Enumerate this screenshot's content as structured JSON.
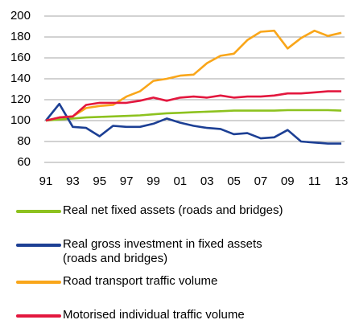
{
  "chart_data": {
    "type": "line",
    "categories": [
      "91",
      null,
      "93",
      null,
      "95",
      null,
      "97",
      null,
      "99",
      null,
      "01",
      null,
      "03",
      null,
      "05",
      null,
      "07",
      null,
      "09",
      null,
      "11",
      null,
      "13"
    ],
    "ylim": [
      60,
      200
    ],
    "yticks": [
      60,
      80,
      100,
      120,
      140,
      160,
      180,
      200
    ],
    "grid": true,
    "series": [
      {
        "name": "Real net fixed assets (roads and bridges)",
        "color": "#8dc21f",
        "values": [
          100,
          101,
          102,
          103,
          103.5,
          104,
          104.5,
          105,
          106,
          107,
          107.5,
          108,
          108.5,
          109,
          109.5,
          109.5,
          109.5,
          109.5,
          110,
          110,
          110,
          110,
          109.5
        ]
      },
      {
        "name": "Real gross investment in fixed assets (roads and bridges)",
        "color": "#1c3f94",
        "values": [
          100,
          116,
          94,
          93,
          85,
          95,
          94,
          94,
          97,
          102,
          98,
          95,
          93,
          92,
          87,
          88,
          83,
          84,
          91,
          80,
          79,
          78,
          78
        ]
      },
      {
        "name": "Road transport traffic volume",
        "color": "#f9a61a",
        "values": [
          100,
          103,
          104,
          112,
          114,
          115,
          123,
          128,
          138,
          140,
          143,
          144,
          155,
          162,
          164,
          177,
          185,
          186,
          169,
          179,
          186,
          181,
          184
        ]
      },
      {
        "name": "Motorised individual traffic volume",
        "color": "#e3173e",
        "values": [
          100,
          103,
          104,
          115,
          117,
          117,
          117,
          119,
          122,
          119,
          122,
          123,
          122,
          124,
          122,
          123,
          123,
          124,
          126,
          126,
          127,
          128,
          128
        ]
      }
    ]
  }
}
